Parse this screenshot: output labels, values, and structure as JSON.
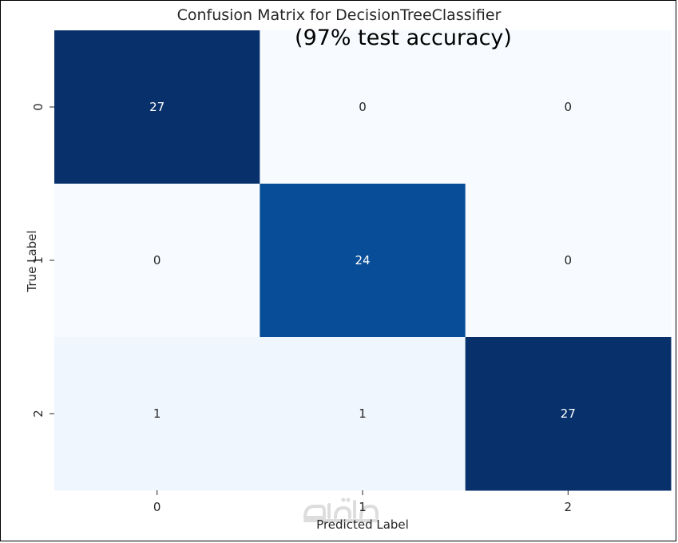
{
  "chart_data": {
    "type": "heatmap",
    "title": "Confusion Matrix for DecisionTreeClassifier",
    "subtitle": "(97% test accuracy)",
    "xlabel": "Predicted Label",
    "ylabel": "True Label",
    "x_categories": [
      "0",
      "1",
      "2"
    ],
    "y_categories": [
      "0",
      "1",
      "2"
    ],
    "values": [
      [
        27,
        0,
        0
      ],
      [
        0,
        24,
        0
      ],
      [
        1,
        1,
        27
      ]
    ],
    "colormap": "Blues",
    "value_range": [
      0,
      27
    ],
    "colorbar": false,
    "colors": {
      "max": "#08306b",
      "min": "#f7fbff",
      "text_dark": "#262626",
      "text_light": "#ffffff"
    }
  },
  "watermark": {
    "icon": "mostaql-logo"
  }
}
